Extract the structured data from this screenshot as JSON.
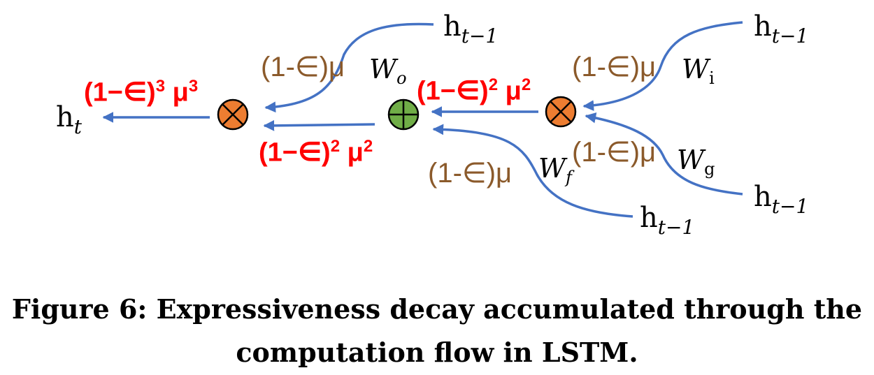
{
  "diagram": {
    "colors": {
      "arrow": "#4472C4",
      "decay_brown": "#8B5A2B",
      "decay_red": "#FF0000",
      "multiply_node": "#ED7D31",
      "add_node": "#70AD47"
    },
    "output_label": {
      "base": "h",
      "sub": "t"
    },
    "input_labels": [
      {
        "base": "h",
        "sub": "t−1"
      },
      {
        "base": "h",
        "sub": "t−1"
      },
      {
        "base": "h",
        "sub": "t−1"
      },
      {
        "base": "h",
        "sub": "t−1"
      }
    ],
    "weights": [
      {
        "base": "W",
        "sub": "o"
      },
      {
        "base": "W",
        "sub": "i"
      },
      {
        "base": "W",
        "sub": "g"
      },
      {
        "base": "W",
        "sub": "f"
      }
    ],
    "decay_single": "(1-∈)μ",
    "decay_squared": {
      "text": "(1−∈)",
      "exp1": "2",
      "mid": " μ",
      "exp2": "2"
    },
    "decay_cubed": {
      "text": "(1−∈)",
      "exp1": "3",
      "mid": " μ",
      "exp2": "3"
    },
    "nodes": [
      {
        "type": "multiply",
        "symbol": "⊗"
      },
      {
        "type": "add",
        "symbol": "⊕"
      },
      {
        "type": "multiply",
        "symbol": "⊗"
      }
    ]
  },
  "caption": {
    "line1": "Figure 6: Expressiveness decay accumulated through the",
    "line2": "computation flow in LSTM."
  }
}
